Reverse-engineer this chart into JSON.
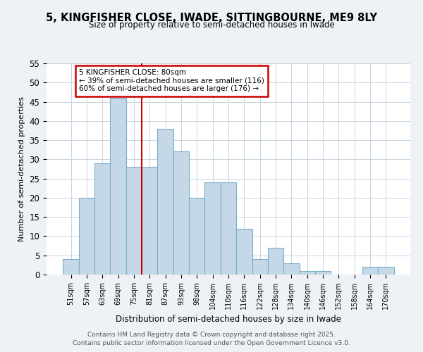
{
  "title": "5, KINGFISHER CLOSE, IWADE, SITTINGBOURNE, ME9 8LY",
  "subtitle": "Size of property relative to semi-detached houses in Iwade",
  "xlabel": "Distribution of semi-detached houses by size in Iwade",
  "ylabel": "Number of semi-detached properties",
  "categories": [
    "51sqm",
    "57sqm",
    "63sqm",
    "69sqm",
    "75sqm",
    "81sqm",
    "87sqm",
    "93sqm",
    "98sqm",
    "104sqm",
    "110sqm",
    "116sqm",
    "122sqm",
    "128sqm",
    "134sqm",
    "140sqm",
    "146sqm",
    "152sqm",
    "158sqm",
    "164sqm",
    "170sqm"
  ],
  "values": [
    4,
    20,
    29,
    46,
    28,
    28,
    38,
    32,
    20,
    24,
    24,
    12,
    4,
    7,
    3,
    1,
    1,
    0,
    0,
    2,
    2
  ],
  "bar_color": "#c5d8e8",
  "bar_edge_color": "#7aafc8",
  "highlight_line_color": "#cc0000",
  "highlight_index": 5,
  "annotation_line1": "5 KINGFISHER CLOSE: 80sqm",
  "annotation_line2": "← 39% of semi-detached houses are smaller (116)",
  "annotation_line3": "60% of semi-detached houses are larger (176) →",
  "annotation_box_color": "#ffffff",
  "annotation_box_edge_color": "#cc0000",
  "ylim": [
    0,
    55
  ],
  "yticks": [
    0,
    5,
    10,
    15,
    20,
    25,
    30,
    35,
    40,
    45,
    50,
    55
  ],
  "footer_line1": "Contains HM Land Registry data © Crown copyright and database right 2025.",
  "footer_line2": "Contains public sector information licensed under the Open Government Licence v3.0.",
  "bg_color": "#eef2f7",
  "plot_bg_color": "#ffffff"
}
